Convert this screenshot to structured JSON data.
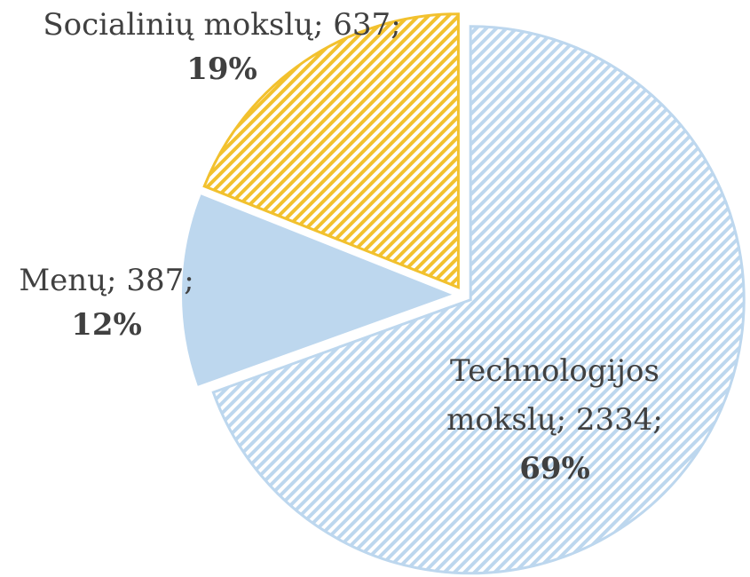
{
  "chart_data": {
    "type": "pie",
    "values": [
      2334,
      387,
      637
    ],
    "value_labels": [
      "Technologijos mokslų; 2334;",
      "Menų; 387;",
      "Socialinių mokslų; 637;"
    ],
    "percents": [
      69,
      12,
      19
    ],
    "percent_labels": [
      "69%",
      "12%",
      "19%"
    ],
    "colors": [
      "#bdd7ee",
      "#bdd7ee",
      "#f2c12e"
    ],
    "hatched": [
      true,
      false,
      true
    ]
  }
}
